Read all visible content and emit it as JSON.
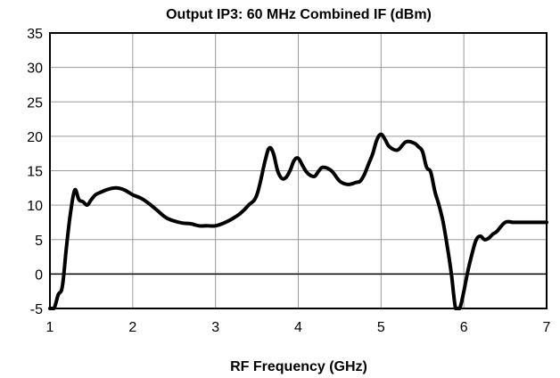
{
  "chart_data": {
    "type": "line",
    "title": "Output IP3: 60 MHz Combined IF (dBm)",
    "xlabel": "RF Frequency (GHz)",
    "ylabel": "",
    "xlim": [
      1,
      7
    ],
    "ylim": [
      -5,
      35
    ],
    "xticks": [
      "1",
      "2",
      "3",
      "4",
      "5",
      "6",
      "7"
    ],
    "yticks": [
      "35",
      "30",
      "25",
      "20",
      "15",
      "10",
      "5",
      "0",
      "-5"
    ],
    "grid": true,
    "series": [
      {
        "x": [
          1.0,
          1.05,
          1.1,
          1.15,
          1.2,
          1.25,
          1.3,
          1.35,
          1.4,
          1.45,
          1.5,
          1.55,
          1.6,
          1.7,
          1.8,
          1.9,
          2.0,
          2.1,
          2.2,
          2.3,
          2.4,
          2.5,
          2.6,
          2.7,
          2.8,
          2.9,
          3.0,
          3.1,
          3.2,
          3.3,
          3.4,
          3.5,
          3.6,
          3.65,
          3.7,
          3.75,
          3.8,
          3.85,
          3.9,
          3.95,
          4.0,
          4.05,
          4.1,
          4.15,
          4.2,
          4.25,
          4.3,
          4.4,
          4.5,
          4.6,
          4.7,
          4.75,
          4.8,
          4.85,
          4.9,
          4.95,
          5.0,
          5.05,
          5.1,
          5.2,
          5.3,
          5.4,
          5.45,
          5.5,
          5.55,
          5.6,
          5.65,
          5.7,
          5.75,
          5.8,
          5.85,
          5.9,
          5.95,
          6.0,
          6.05,
          6.1,
          6.15,
          6.2,
          6.25,
          6.3,
          6.35,
          6.4,
          6.5,
          6.6,
          6.7,
          6.75,
          6.8,
          6.85,
          6.9,
          6.95,
          7.0
        ],
        "y": [
          -5,
          -5,
          -3,
          -1.8,
          4,
          9,
          12.2,
          10.8,
          10.5,
          10,
          10.8,
          11.5,
          11.8,
          12.3,
          12.5,
          12.2,
          11.5,
          11,
          10.2,
          9.2,
          8.2,
          7.7,
          7.4,
          7.3,
          7.0,
          7.0,
          7.0,
          7.4,
          8.0,
          8.8,
          10,
          11.5,
          16.5,
          18.3,
          17.5,
          15.0,
          13.9,
          14.0,
          15.0,
          16.5,
          16.8,
          15.8,
          14.8,
          14.3,
          14.2,
          15.0,
          15.5,
          15.0,
          13.5,
          13.0,
          13.3,
          13.5,
          14.5,
          16.0,
          17.5,
          19.5,
          20.3,
          19.5,
          18.5,
          18.0,
          19.2,
          19.0,
          18.5,
          17.8,
          15.5,
          14.8,
          12.0,
          10.0,
          7.5,
          4.0,
          0.0,
          -5.0,
          -5.0,
          -2.5,
          0.5,
          3.0,
          5.0,
          5.5,
          5.0,
          5.2,
          5.8,
          6.2,
          7.5,
          7.5,
          7.5,
          7.5,
          7.5,
          7.5,
          7.5,
          7.5,
          7.5
        ]
      }
    ]
  }
}
